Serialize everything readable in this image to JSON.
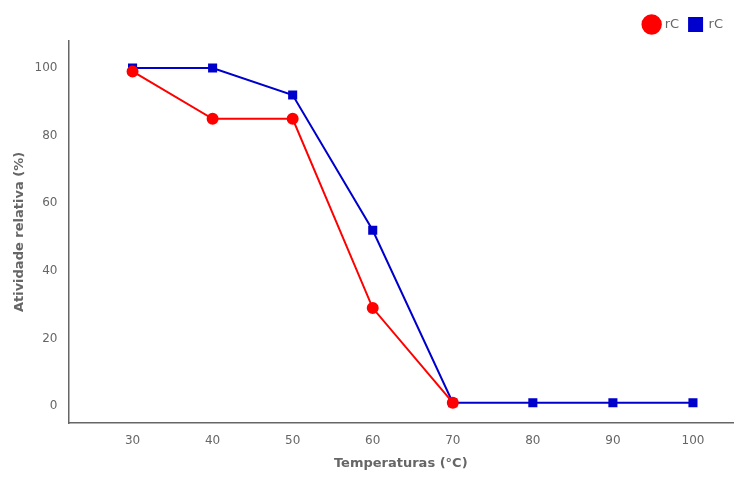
{
  "chart_data": {
    "type": "line",
    "xlabel": "Temperaturas (°C)",
    "ylabel": "Atividade relativa (%)",
    "series": [
      {
        "name": "rC",
        "color": "#FF0000",
        "marker": "circle",
        "x": [
          30,
          40,
          50,
          60,
          70
        ],
        "values": [
          99,
          85,
          85,
          29,
          1
        ]
      },
      {
        "name": "rC",
        "color": "#0000CD",
        "marker": "square",
        "x": [
          30,
          40,
          50,
          60,
          70,
          80,
          90,
          100
        ],
        "values": [
          100,
          100,
          92,
          52,
          1,
          1,
          1,
          1
        ]
      }
    ],
    "xlim": [
      22,
      105
    ],
    "ylim": [
      -5,
      108
    ],
    "xticks": [
      30,
      40,
      50,
      60,
      70,
      80,
      90,
      100
    ],
    "yticks": [
      0,
      20,
      40,
      60,
      80,
      100
    ],
    "grid": false,
    "legend": "upper right"
  }
}
